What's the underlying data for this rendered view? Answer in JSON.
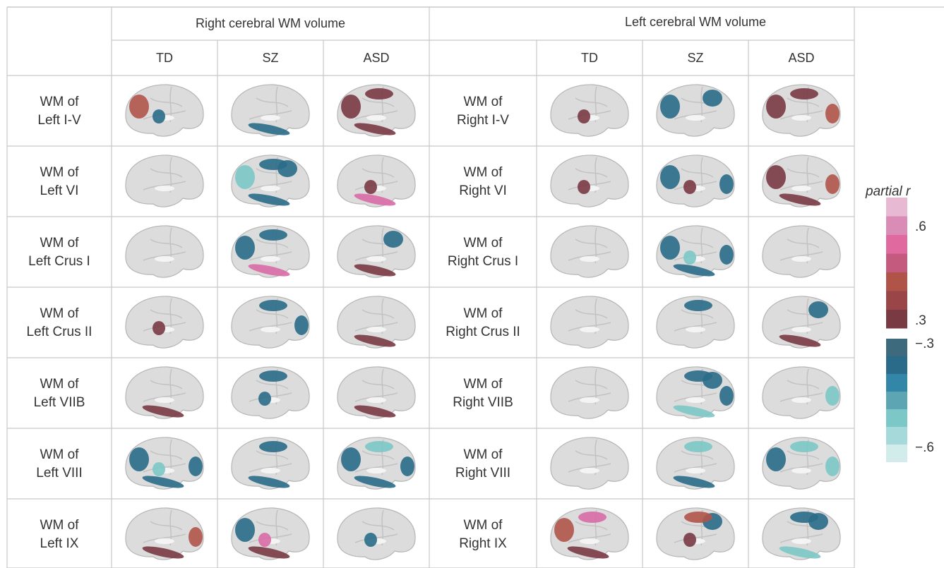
{
  "header": {
    "right_title": "Right cerebral WM volume",
    "left_title": "Left cerebral WM volume"
  },
  "subheaders": {
    "right": [
      "TD",
      "SZ",
      "ASD"
    ],
    "left": [
      "TD",
      "SZ",
      "ASD"
    ]
  },
  "rows": [
    {
      "left_label": [
        "WM of",
        "Left I-V"
      ],
      "right_label": [
        "WM of",
        "Right I-V"
      ]
    },
    {
      "left_label": [
        "WM of",
        "Left VI"
      ],
      "right_label": [
        "WM of",
        "Right VI"
      ]
    },
    {
      "left_label": [
        "WM of",
        "Left Crus I"
      ],
      "right_label": [
        "WM of",
        "Right Crus I"
      ]
    },
    {
      "left_label": [
        "WM of",
        "Left Crus II"
      ],
      "right_label": [
        "WM of",
        "Right Crus II"
      ]
    },
    {
      "left_label": [
        "WM of",
        "Left VIIB"
      ],
      "right_label": [
        "WM of",
        "Right VIIB"
      ]
    },
    {
      "left_label": [
        "WM of",
        "Left VIII"
      ],
      "right_label": [
        "WM of",
        "Right VIII"
      ]
    },
    {
      "left_label": [
        "WM of",
        "Left IX"
      ],
      "right_label": [
        "WM of",
        "Right IX"
      ]
    }
  ],
  "legend": {
    "title": "partial r",
    "ticks": [
      ".6",
      ".3",
      "−.3",
      "−.6"
    ]
  }
}
